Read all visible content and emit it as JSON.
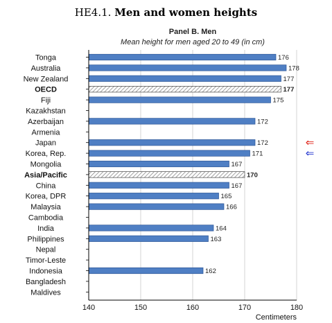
{
  "figure": {
    "number": "HE4.1.",
    "title": "Men and women heights"
  },
  "chart_data": {
    "type": "bar",
    "orientation": "horizontal",
    "title": "Panel B. Men",
    "subtitle": "Mean height for men aged 20 to 49 (in cm)",
    "xlabel": "Centimeters",
    "xlim": [
      140,
      180
    ],
    "xticks": [
      "140",
      "150",
      "160",
      "170",
      "180"
    ],
    "grid": true,
    "categories": [
      "Tonga",
      "Australia",
      "New Zealand",
      "OECD",
      "Fiji",
      "Kazakhstan",
      "Azerbaijan",
      "Armenia",
      "Japan",
      "Korea, Rep.",
      "Mongolia",
      "Asia/Pacific",
      "China",
      "Korea, DPR",
      "Malaysia",
      "Cambodia",
      "India",
      "Philippines",
      "Nepal",
      "Timor-Leste",
      "Indonesia",
      "Bangladesh",
      "Maldives"
    ],
    "values": [
      176,
      178,
      177,
      177,
      175,
      null,
      172,
      null,
      172,
      171,
      167,
      170,
      167,
      165,
      166,
      null,
      164,
      163,
      null,
      null,
      162,
      null,
      null
    ],
    "value_labels": [
      "176",
      "178",
      "177",
      "177",
      "175",
      "",
      "172",
      "",
      "172",
      "171",
      "167",
      "170",
      "167",
      "165",
      "166",
      "",
      "164",
      "163",
      "",
      "",
      "162",
      "",
      ""
    ],
    "aggregates": [
      "OECD",
      "Asia/Pacific"
    ],
    "bar_color": "#4f7fc4",
    "aggregate_fill": "hatched",
    "markers": [
      {
        "category": "Japan",
        "glyph": "⇐",
        "color": "#e0261c"
      },
      {
        "category": "Korea, Rep.",
        "glyph": "⇐",
        "color": "#2a3bd0"
      }
    ]
  }
}
